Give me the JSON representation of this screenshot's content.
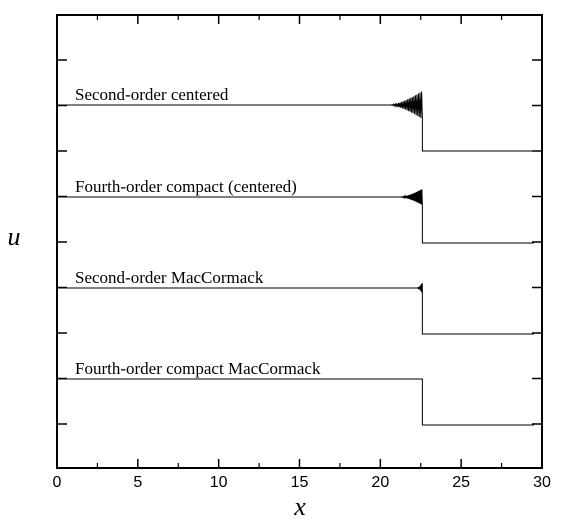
{
  "chart_data": {
    "type": "line",
    "title": "",
    "xlabel": "x",
    "ylabel": "u",
    "xlim": [
      0,
      30
    ],
    "xticks": [
      "0",
      "5",
      "10",
      "15",
      "20",
      "25",
      "30"
    ],
    "grid": false,
    "legend": "none",
    "series": [
      {
        "name": "Second-order centered",
        "shock_x": 22.6,
        "upstream_x": [
          0,
          20.5
        ],
        "oscillation_x": [
          20.5,
          22.6
        ],
        "oscillation_amplitude": "large",
        "downstream_x": [
          22.6,
          29.5
        ]
      },
      {
        "name": "Fourth-order compact (centered)",
        "shock_x": 22.6,
        "upstream_x": [
          0,
          21.2
        ],
        "oscillation_x": [
          21.2,
          22.6
        ],
        "oscillation_amplitude": "medium",
        "downstream_x": [
          22.6,
          29.5
        ]
      },
      {
        "name": "Second-order MacCormack",
        "shock_x": 22.6,
        "upstream_x": [
          0,
          22.3
        ],
        "oscillation_x": [
          22.3,
          22.6
        ],
        "oscillation_amplitude": "small",
        "downstream_x": [
          22.6,
          29.5
        ]
      },
      {
        "name": "Fourth-order compact MacCormack",
        "shock_x": 22.6,
        "upstream_x": [
          0,
          22.6
        ],
        "oscillation_x": [
          22.6,
          22.6
        ],
        "oscillation_amplitude": "none",
        "downstream_x": [
          22.6,
          29.5
        ]
      }
    ]
  }
}
